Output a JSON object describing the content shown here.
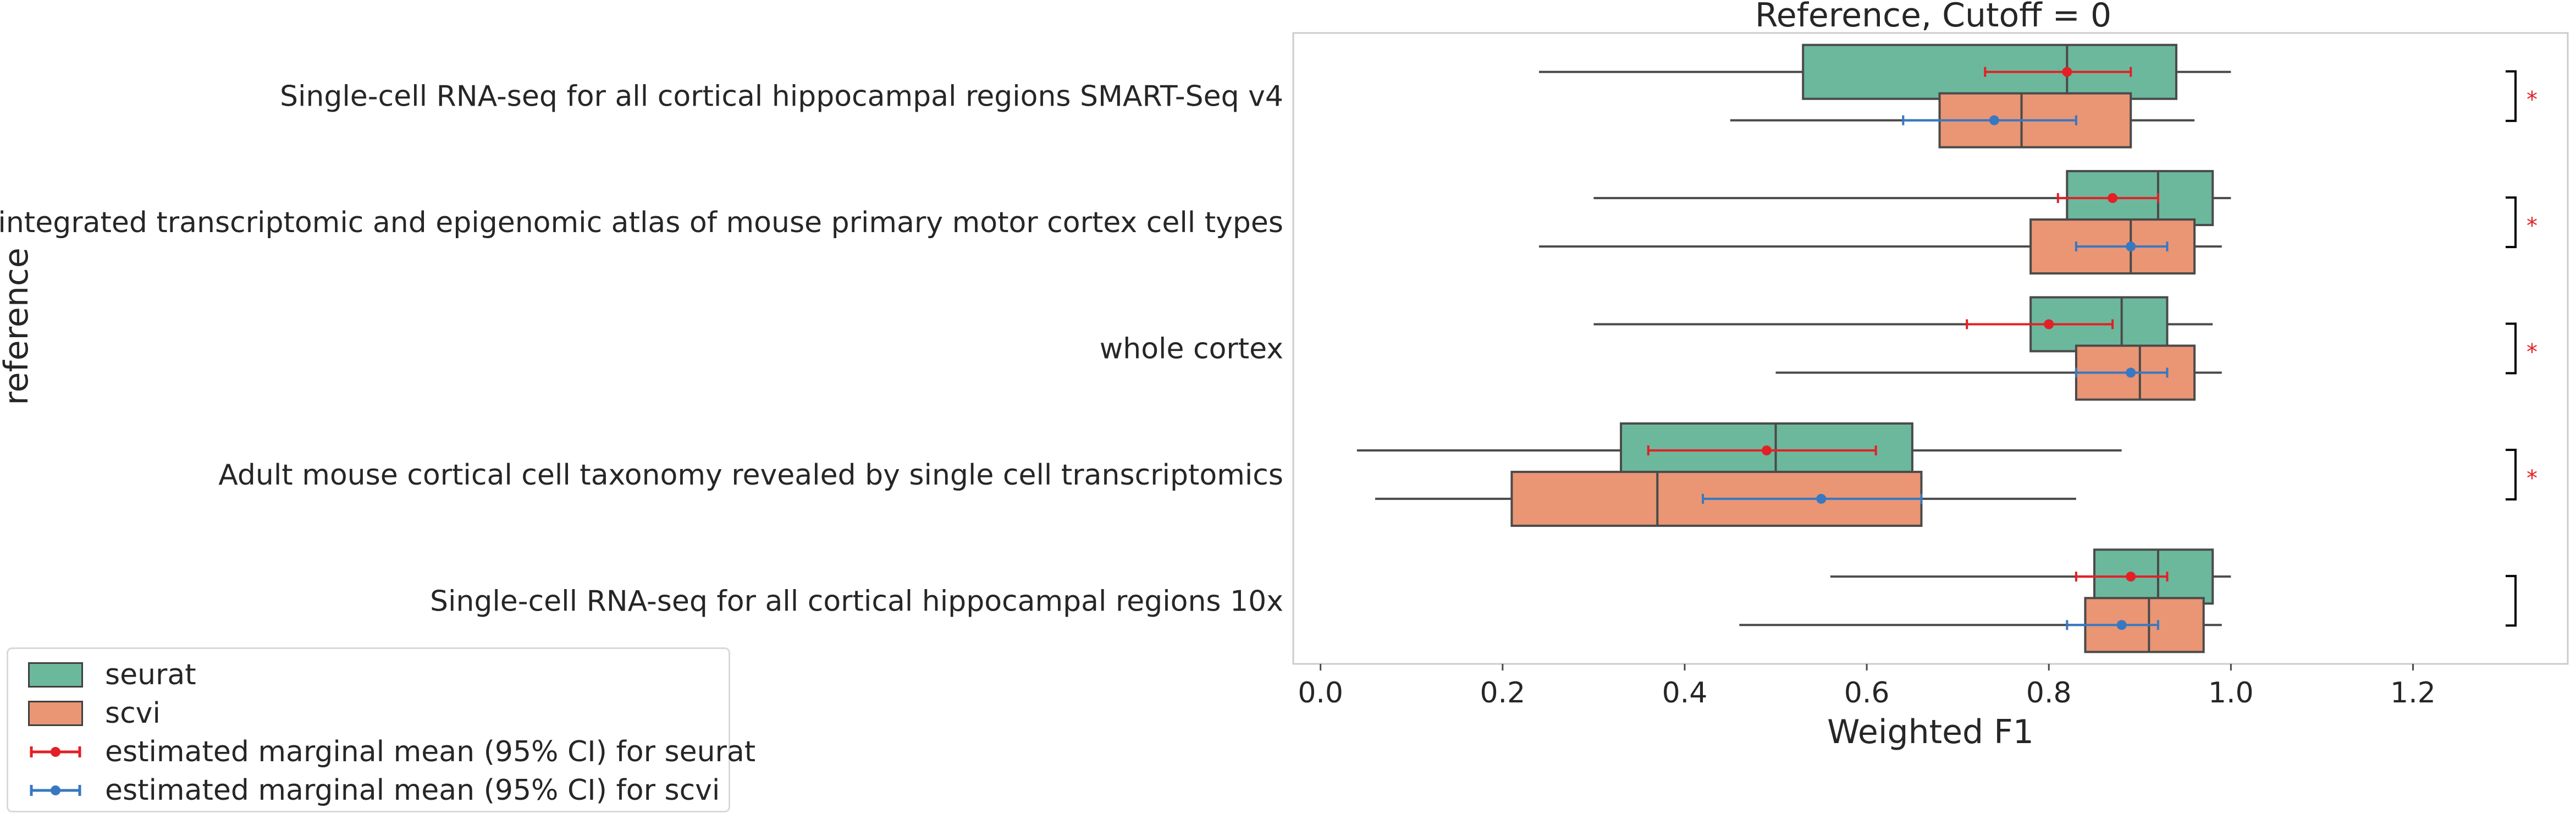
{
  "chart_data": {
    "type": "boxplot",
    "title": "Reference, Cutoff = 0",
    "xlabel": "Weighted F1",
    "ylabel": "reference",
    "xlim": [
      -0.03,
      1.37
    ],
    "xticks": [
      0.0,
      0.2,
      0.4,
      0.6,
      0.8,
      1.0,
      1.2
    ],
    "xtick_labels": [
      "0.0",
      "0.2",
      "0.4",
      "0.6",
      "0.8",
      "1.0",
      "1.2"
    ],
    "grid": false,
    "legend_position": "lower-left-outside",
    "colors": {
      "seurat": "#6cb89d",
      "scvi": "#ea9574",
      "seurat_mean": "#e32026",
      "scvi_mean": "#3778c2",
      "box_edge": "#4a4a4a",
      "signif": "#e32026"
    },
    "legend": [
      {
        "key": "seurat",
        "label": "seurat",
        "kind": "box"
      },
      {
        "key": "scvi",
        "label": "scvi",
        "kind": "box"
      },
      {
        "key": "seurat_mean",
        "label": "estimated marginal mean (95% CI) for seurat",
        "kind": "errorbar"
      },
      {
        "key": "scvi_mean",
        "label": "estimated marginal mean (95% CI) for scvi",
        "kind": "errorbar"
      }
    ],
    "categories": [
      "Single-cell RNA-seq for all cortical  hippocampal regions SMART-Seq v4",
      "An integrated transcriptomic and epigenomic atlas of mouse primary motor cortex cell types",
      "whole cortex",
      "Adult mouse cortical cell taxonomy revealed by single cell transcriptomics",
      "Single-cell RNA-seq for all cortical  hippocampal regions 10x"
    ],
    "series": [
      {
        "name": "seurat",
        "boxes": [
          {
            "whislo": 0.24,
            "q1": 0.53,
            "med": 0.82,
            "q3": 0.94,
            "whishi": 1.0
          },
          {
            "whislo": 0.3,
            "q1": 0.82,
            "med": 0.92,
            "q3": 0.98,
            "whishi": 1.0
          },
          {
            "whislo": 0.3,
            "q1": 0.78,
            "med": 0.88,
            "q3": 0.93,
            "whishi": 0.98
          },
          {
            "whislo": 0.04,
            "q1": 0.33,
            "med": 0.5,
            "q3": 0.65,
            "whishi": 0.88
          },
          {
            "whislo": 0.56,
            "q1": 0.85,
            "med": 0.92,
            "q3": 0.98,
            "whishi": 1.0
          }
        ]
      },
      {
        "name": "scvi",
        "boxes": [
          {
            "whislo": 0.45,
            "q1": 0.68,
            "med": 0.77,
            "q3": 0.89,
            "whishi": 0.96
          },
          {
            "whislo": 0.24,
            "q1": 0.78,
            "med": 0.89,
            "q3": 0.96,
            "whishi": 0.99
          },
          {
            "whislo": 0.5,
            "q1": 0.83,
            "med": 0.9,
            "q3": 0.96,
            "whishi": 0.99
          },
          {
            "whislo": 0.06,
            "q1": 0.21,
            "med": 0.37,
            "q3": 0.66,
            "whishi": 0.83
          },
          {
            "whislo": 0.46,
            "q1": 0.84,
            "med": 0.91,
            "q3": 0.97,
            "whishi": 0.99
          }
        ]
      }
    ],
    "marginal_means": [
      {
        "name": "seurat",
        "values": [
          {
            "mean": 0.82,
            "lo": 0.73,
            "hi": 0.89
          },
          {
            "mean": 0.87,
            "lo": 0.81,
            "hi": 0.92
          },
          {
            "mean": 0.8,
            "lo": 0.71,
            "hi": 0.87
          },
          {
            "mean": 0.49,
            "lo": 0.36,
            "hi": 0.61
          },
          {
            "mean": 0.89,
            "lo": 0.83,
            "hi": 0.93
          }
        ]
      },
      {
        "name": "scvi",
        "values": [
          {
            "mean": 0.74,
            "lo": 0.64,
            "hi": 0.83
          },
          {
            "mean": 0.89,
            "lo": 0.83,
            "hi": 0.93
          },
          {
            "mean": 0.89,
            "lo": 0.83,
            "hi": 0.93
          },
          {
            "mean": 0.55,
            "lo": 0.42,
            "hi": 0.66
          },
          {
            "mean": 0.88,
            "lo": 0.82,
            "hi": 0.92
          }
        ]
      }
    ],
    "significance": [
      {
        "category": 0,
        "label": "*"
      },
      {
        "category": 1,
        "label": "*"
      },
      {
        "category": 2,
        "label": "*"
      },
      {
        "category": 3,
        "label": "*"
      },
      {
        "category": 4,
        "label": ""
      }
    ]
  }
}
